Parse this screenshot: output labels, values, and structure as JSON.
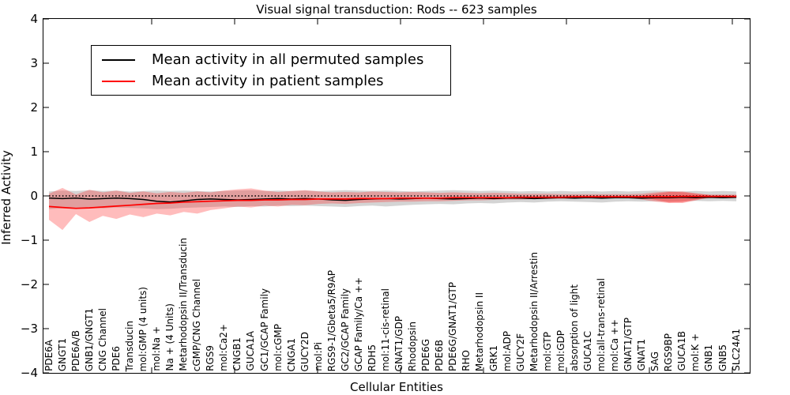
{
  "title": "Visual signal transduction: Rods -- 623 samples",
  "axes": {
    "ylabel": "Inferred Activity",
    "xlabel": "Cellular Entities",
    "ytick_labels": [
      "4",
      "3",
      "2",
      "1",
      "0",
      "−1",
      "−2",
      "−3",
      "−4"
    ]
  },
  "legend": {
    "items": [
      {
        "label": "Mean activity in all permuted samples",
        "color": "#000000"
      },
      {
        "label": "Mean activity in patient samples",
        "color": "#ff0000"
      }
    ]
  },
  "chart_data": {
    "type": "line",
    "title": "Visual signal transduction: Rods -- 623 samples",
    "xlabel": "Cellular Entities",
    "ylabel": "Inferred Activity",
    "ylim": [
      -4,
      4
    ],
    "grid": false,
    "legend_position": "upper left",
    "categories": [
      "PDE6A",
      "GNGT1",
      "PDE6A/B",
      "GNB1/GNGT1",
      "CNG Channel",
      "PDE6",
      "Transducin",
      "mol:GMP (4 units)",
      "mol:Na +",
      "Na + (4 Units)",
      "Metarhodopsin II/Transducin",
      "cGMP/CNG Channel",
      "RGS9",
      "mol:Ca2+",
      "CNGB1",
      "GUCA1A",
      "GC1/GCAP Family",
      "mol:cGMP",
      "CNGA1",
      "GUCY2D",
      "mol:Pi",
      "RGS9-1/Gbeta5/R9AP",
      "GC2/GCAP Family",
      "GCAP Family/Ca ++",
      "RDH5",
      "mol:11-cis-retinal",
      "GNAT1/GDP",
      "Rhodopsin",
      "PDE6G",
      "PDE6B",
      "PDE6G/GNAT1/GTP",
      "RHO",
      "Metarhodopsin II",
      "GRK1",
      "mol:ADP",
      "GUCY2F",
      "Metarhodopsin II/Arrestin",
      "mol:GTP",
      "mol:GDP",
      "absorption of light",
      "GUCA1C",
      "mol:all-trans-retinal",
      "mol:Ca ++",
      "GNAT1/GTP",
      "GNAT1",
      "SAG",
      "RGS9BP",
      "GUCA1B",
      "mol:K +",
      "GNB1",
      "GNB5",
      "SLC24A1"
    ],
    "series": [
      {
        "name": "Mean activity in all permuted samples",
        "color": "#000000",
        "style": "solid",
        "width": 1.5,
        "values": [
          -0.05,
          -0.06,
          -0.05,
          -0.07,
          -0.06,
          -0.05,
          -0.06,
          -0.08,
          -0.12,
          -0.14,
          -0.11,
          -0.08,
          -0.07,
          -0.08,
          -0.09,
          -0.08,
          -0.07,
          -0.06,
          -0.07,
          -0.06,
          -0.07,
          -0.09,
          -0.1,
          -0.08,
          -0.07,
          -0.06,
          -0.07,
          -0.06,
          -0.05,
          -0.06,
          -0.07,
          -0.06,
          -0.05,
          -0.06,
          -0.05,
          -0.05,
          -0.06,
          -0.05,
          -0.04,
          -0.05,
          -0.04,
          -0.05,
          -0.04,
          -0.04,
          -0.05,
          -0.04,
          -0.04,
          -0.03,
          -0.04,
          -0.03,
          -0.04,
          -0.03
        ]
      },
      {
        "name": "Mean activity in patient samples",
        "color": "#ff0000",
        "style": "solid",
        "width": 1.7,
        "values": [
          -0.24,
          -0.26,
          -0.28,
          -0.27,
          -0.25,
          -0.23,
          -0.21,
          -0.19,
          -0.17,
          -0.16,
          -0.14,
          -0.13,
          -0.12,
          -0.11,
          -0.1,
          -0.1,
          -0.09,
          -0.09,
          -0.08,
          -0.08,
          -0.07,
          -0.07,
          -0.07,
          -0.06,
          -0.06,
          -0.06,
          -0.05,
          -0.05,
          -0.05,
          -0.05,
          -0.04,
          -0.04,
          -0.04,
          -0.04,
          -0.04,
          -0.03,
          -0.03,
          -0.03,
          -0.03,
          -0.02,
          -0.02,
          -0.02,
          -0.02,
          -0.02,
          -0.02,
          -0.02,
          -0.02,
          -0.01,
          -0.01,
          -0.01,
          -0.01,
          -0.01
        ]
      }
    ],
    "reference_line": {
      "y": 0,
      "style": "dotted",
      "color": "#000000"
    },
    "bands": [
      {
        "name": "permuted-samples-range",
        "color": "#999999",
        "opacity": 0.42,
        "start_index": 0,
        "upper": [
          0.1,
          0.12,
          0.11,
          0.13,
          0.11,
          0.12,
          0.1,
          0.11,
          0.12,
          0.11,
          0.12,
          0.11,
          0.1,
          0.11,
          0.12,
          0.13,
          0.11,
          0.12,
          0.11,
          0.12,
          0.11,
          0.12,
          0.13,
          0.12,
          0.11,
          0.12,
          0.11,
          0.1,
          0.11,
          0.12,
          0.13,
          0.12,
          0.11,
          0.12,
          0.11,
          0.1,
          0.11,
          0.1,
          0.11,
          0.1,
          0.11,
          0.1,
          0.11,
          0.1,
          0.11,
          0.12,
          0.11,
          0.1,
          0.11,
          0.1,
          0.11,
          0.1
        ],
        "lower": [
          -0.3,
          -0.28,
          -0.3,
          -0.27,
          -0.28,
          -0.26,
          -0.27,
          -0.28,
          -0.3,
          -0.29,
          -0.27,
          -0.26,
          -0.25,
          -0.24,
          -0.25,
          -0.23,
          -0.24,
          -0.22,
          -0.23,
          -0.22,
          -0.23,
          -0.24,
          -0.25,
          -0.23,
          -0.22,
          -0.24,
          -0.22,
          -0.2,
          -0.19,
          -0.18,
          -0.19,
          -0.17,
          -0.16,
          -0.17,
          -0.15,
          -0.14,
          -0.15,
          -0.13,
          -0.12,
          -0.13,
          -0.14,
          -0.15,
          -0.13,
          -0.12,
          -0.13,
          -0.12,
          -0.13,
          -0.12,
          -0.11,
          -0.12,
          -0.11,
          -0.12
        ]
      },
      {
        "name": "patient-samples-range",
        "color": "#ff2222",
        "opacity": 0.3,
        "start_index": 0,
        "upper": [
          0.05,
          0.18,
          0.03,
          0.14,
          0.08,
          0.12,
          0.07,
          0.1,
          0.06,
          0.09,
          0.07,
          0.1,
          0.08,
          0.12,
          0.15,
          0.17,
          0.12,
          0.09,
          0.11,
          0.13,
          0.1,
          0.08,
          0.09,
          0.08,
          0.1,
          0.09,
          0.08,
          0.09,
          0.08,
          0.07,
          0.08,
          0.07,
          0.06,
          0.07,
          0.06,
          0.05,
          0.05,
          0.05,
          0.04,
          0.04,
          0.04,
          0.04,
          0.04,
          0.04,
          0.05,
          0.08,
          0.1,
          0.08,
          0.05,
          0.03,
          0.03,
          0.03
        ],
        "lower": [
          -0.54,
          -0.77,
          -0.41,
          -0.59,
          -0.45,
          -0.52,
          -0.42,
          -0.48,
          -0.4,
          -0.44,
          -0.36,
          -0.4,
          -0.32,
          -0.28,
          -0.24,
          -0.26,
          -0.22,
          -0.24,
          -0.2,
          -0.21,
          -0.18,
          -0.17,
          -0.18,
          -0.16,
          -0.15,
          -0.14,
          -0.13,
          -0.13,
          -0.12,
          -0.12,
          -0.11,
          -0.1,
          -0.1,
          -0.09,
          -0.08,
          -0.08,
          -0.07,
          -0.07,
          -0.06,
          -0.06,
          -0.05,
          -0.05,
          -0.05,
          -0.05,
          -0.08,
          -0.13,
          -0.16,
          -0.14,
          -0.08,
          -0.05,
          -0.05,
          -0.05
        ]
      },
      {
        "name": "patient-samples-range-overlap",
        "color": "#ff2222",
        "opacity": 0.35,
        "start_index": 44,
        "upper": [
          0.01,
          0.05,
          0.09,
          0.1,
          0.06,
          0.02
        ],
        "lower": [
          -0.02,
          -0.09,
          -0.15,
          -0.16,
          -0.1,
          -0.03
        ]
      }
    ]
  }
}
